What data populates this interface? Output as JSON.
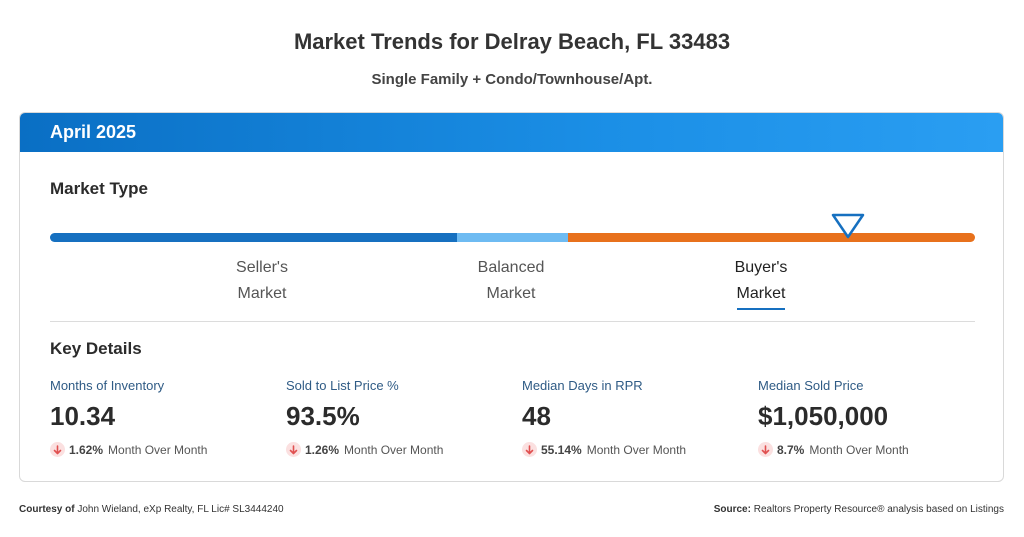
{
  "page": {
    "title": "Market Trends for Delray Beach, FL 33483",
    "subtitle": "Single Family + Condo/Townhouse/Apt."
  },
  "card": {
    "header": "April 2025",
    "market_type": {
      "heading": "Market Type",
      "segments": [
        {
          "line1": "Seller's",
          "line2": "Market",
          "color": "#1670c0"
        },
        {
          "line1": "Balanced",
          "line2": "Market",
          "color": "#6ebbf2"
        },
        {
          "line1": "Buyer's",
          "line2": "Market",
          "color": "#e8711c"
        }
      ],
      "selected": "Buyer's Market",
      "indicator_icon": "triangle-down-icon"
    },
    "key_details": {
      "heading": "Key Details",
      "items": [
        {
          "label": "Months of Inventory",
          "value": "10.34",
          "change": "1.62%",
          "change_label": "Month Over Month",
          "direction": "down"
        },
        {
          "label": "Sold to List Price %",
          "value": "93.5%",
          "change": "1.26%",
          "change_label": "Month Over Month",
          "direction": "down"
        },
        {
          "label": "Median Days in RPR",
          "value": "48",
          "change": "55.14%",
          "change_label": "Month Over Month",
          "direction": "down"
        },
        {
          "label": "Median Sold Price",
          "value": "$1,050,000",
          "change": "8.7%",
          "change_label": "Month Over Month",
          "direction": "down"
        }
      ]
    }
  },
  "footer": {
    "courtesy_label": "Courtesy of",
    "courtesy_text": "John Wieland, eXp Realty, FL Lic# SL3444240",
    "source_label": "Source:",
    "source_text": "Realtors Property Resource® analysis based on Listings"
  },
  "colors": {
    "accent": "#1670c0",
    "down": "#e05050"
  }
}
